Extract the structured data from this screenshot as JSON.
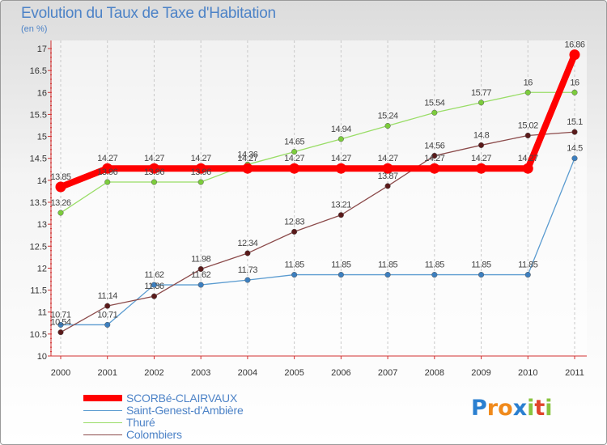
{
  "chart_data": {
    "type": "line",
    "title": "Evolution du Taux de Taxe d'Habitation",
    "subtitle": "(en %)",
    "x": [
      "2000",
      "2001",
      "2002",
      "2003",
      "2004",
      "2005",
      "2006",
      "2007",
      "2008",
      "2009",
      "2010",
      "2011"
    ],
    "ylim": [
      10,
      17
    ],
    "yticks": [
      "10",
      "10.5",
      "11",
      "11.5",
      "12",
      "12.5",
      "13",
      "13.5",
      "14",
      "14.5",
      "15",
      "15.5",
      "16",
      "16.5",
      "17"
    ],
    "grid": "vertical",
    "legend": "bottom-left",
    "series": [
      {
        "name": "SCORBé-CLAIRVAUX",
        "color": "#ff0000",
        "thick": true,
        "values": [
          13.85,
          14.27,
          14.27,
          14.27,
          14.27,
          14.27,
          14.27,
          14.27,
          14.27,
          14.27,
          14.27,
          16.86
        ],
        "labels": [
          "13.85",
          "14.27",
          "14.27",
          "14.27",
          "14.27",
          "14.27",
          "14.27",
          "14.27",
          "14.27",
          "14.27",
          "14.27",
          "16.86"
        ]
      },
      {
        "name": "Saint-Genest-d'Ambière",
        "color": "#5a9bd0",
        "marker": "#3d7fbf",
        "values": [
          10.71,
          10.71,
          11.62,
          11.62,
          11.73,
          11.85,
          11.85,
          11.85,
          11.85,
          11.85,
          11.85,
          14.5
        ],
        "labels": [
          "10.71",
          "10.71",
          "11.62",
          "11.62",
          "11.73",
          "11.85",
          "11.85",
          "11.85",
          "11.85",
          "11.85",
          "11.85",
          "14.5"
        ]
      },
      {
        "name": "Thuré",
        "color": "#99dd66",
        "marker": "#7ccc3c",
        "values": [
          13.26,
          13.96,
          13.96,
          13.96,
          14.36,
          14.65,
          14.94,
          15.24,
          15.54,
          15.77,
          16,
          16
        ],
        "labels": [
          "13.26",
          "13.96",
          "13.96",
          "13.96",
          "14.36",
          "14.65",
          "14.94",
          "15.24",
          "15.54",
          "15.77",
          "16",
          "16"
        ]
      },
      {
        "name": "Colombiers",
        "color": "#8b4a4a",
        "marker": "#5a1a1a",
        "values": [
          10.54,
          11.14,
          11.36,
          11.98,
          12.34,
          12.83,
          13.21,
          13.87,
          14.56,
          14.8,
          15.02,
          15.1
        ],
        "labels": [
          "10.54",
          "11.14",
          "11.36",
          "11.98",
          "12.34",
          "12.83",
          "13.21",
          "13.87",
          "14.56",
          "14.8",
          "15.02",
          "15.1"
        ]
      }
    ]
  },
  "logo": {
    "text": "Proxiti",
    "letters": [
      {
        "ch": "P",
        "color": "#2a7fd0"
      },
      {
        "ch": "r",
        "color": "#f08a1c"
      },
      {
        "ch": "o",
        "color": "#f08a1c"
      },
      {
        "ch": "x",
        "color": "#2a7fd0"
      },
      {
        "ch": "i",
        "color": "#89c43f"
      },
      {
        "ch": "t",
        "color": "#e0442a"
      },
      {
        "ch": "i",
        "color": "#89c43f"
      }
    ]
  }
}
